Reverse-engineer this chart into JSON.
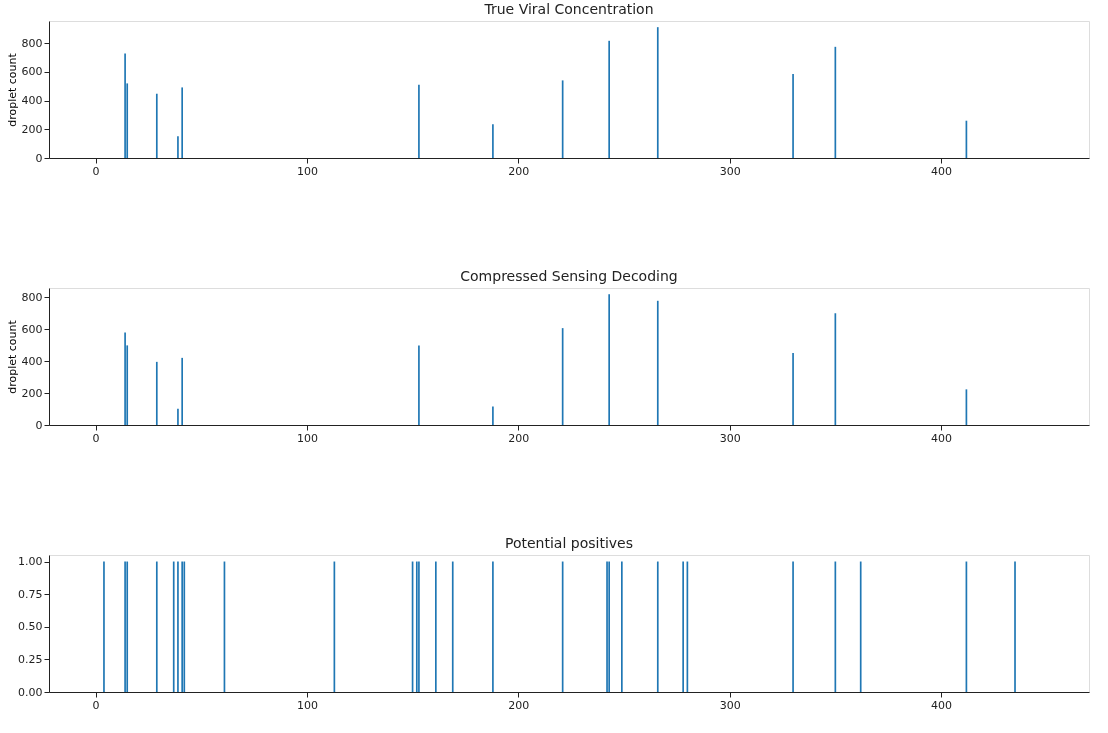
{
  "chart_data": [
    {
      "type": "bar",
      "title": "True Viral Concentration",
      "ylabel": "droplet count",
      "x": [
        14,
        15,
        29,
        39,
        41,
        153,
        188,
        221,
        243,
        266,
        330,
        350,
        412
      ],
      "series": [
        {
          "color": "#1f77b4",
          "values": [
            729,
            520,
            448,
            151,
            492,
            510,
            235,
            541,
            817,
            912,
            586,
            775,
            260
          ]
        }
      ],
      "xlim": [
        -22,
        470
      ],
      "xticks": [
        0,
        100,
        200,
        300,
        400
      ],
      "ylim": [
        0,
        955
      ],
      "yticks": [
        0,
        200,
        400,
        600,
        800
      ],
      "grid": false
    },
    {
      "type": "bar",
      "title": "Compressed Sensing Decoding",
      "ylabel": "droplet count",
      "x": [
        14,
        15,
        29,
        39,
        41,
        153,
        188,
        221,
        243,
        266,
        330,
        350,
        412
      ],
      "series": [
        {
          "color": "#1f77b4",
          "values": [
            578,
            498,
            395,
            101,
            420,
            498,
            115,
            606,
            818,
            777,
            450,
            699,
            223
          ]
        }
      ],
      "xlim": [
        -22,
        470
      ],
      "xticks": [
        0,
        100,
        200,
        300,
        400
      ],
      "ylim": [
        0,
        857
      ],
      "yticks": [
        0,
        200,
        400,
        600,
        800
      ],
      "grid": false
    },
    {
      "type": "bar",
      "title": "Potential positives",
      "x": [
        4,
        14,
        15,
        29,
        37,
        39,
        41,
        42,
        61,
        113,
        150,
        152,
        153,
        161,
        169,
        188,
        221,
        242,
        243,
        249,
        266,
        278,
        280,
        330,
        350,
        362,
        412,
        435
      ],
      "series": [
        {
          "color": "#1f77b4",
          "values": [
            1,
            1,
            1,
            1,
            1,
            1,
            1,
            1,
            1,
            1,
            1,
            1,
            1,
            1,
            1,
            1,
            1,
            1,
            1,
            1,
            1,
            1,
            1,
            1,
            1,
            1,
            1,
            1
          ]
        }
      ],
      "xlim": [
        -22,
        470
      ],
      "xticks": [
        0,
        100,
        200,
        300,
        400
      ],
      "ylim": [
        0,
        1.05
      ],
      "yticks": [
        {
          "value": 0,
          "label": "0.00"
        },
        {
          "value": 0.25,
          "label": "0.25"
        },
        {
          "value": 0.5,
          "label": "0.50"
        },
        {
          "value": 0.75,
          "label": "0.75"
        },
        {
          "value": 1,
          "label": "1.00"
        }
      ],
      "grid": false
    }
  ]
}
